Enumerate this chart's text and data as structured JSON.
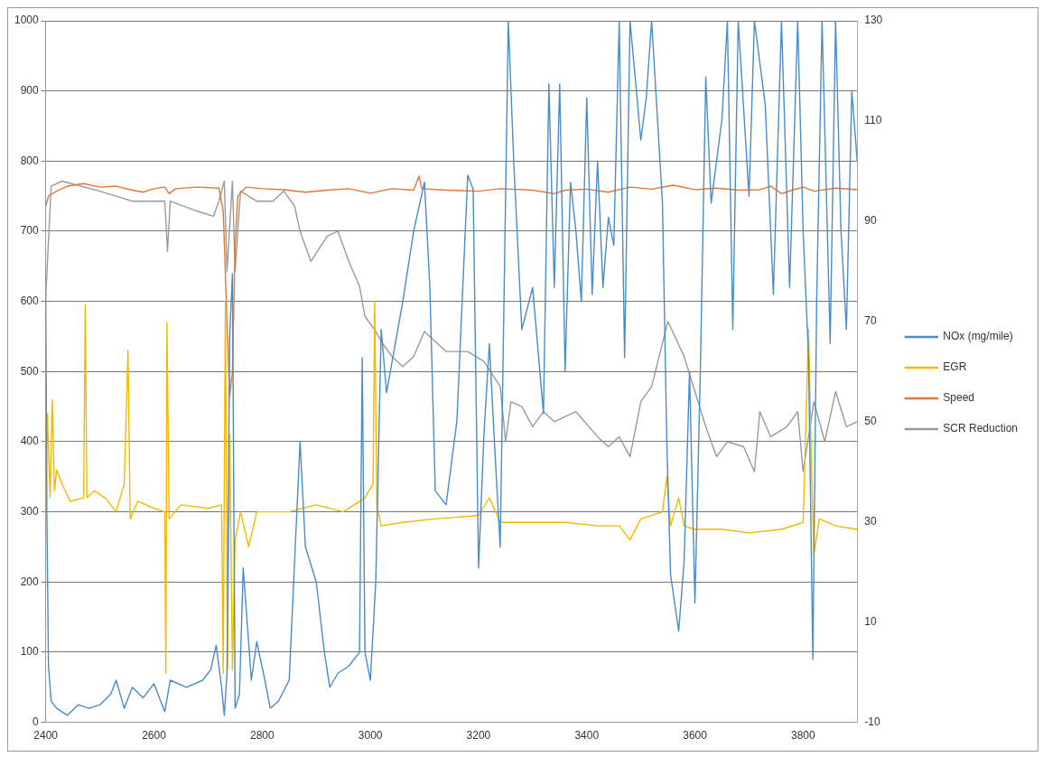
{
  "chart_data": {
    "type": "line",
    "xlim": [
      2400,
      3900
    ],
    "xticks": [
      2400,
      2600,
      2800,
      3000,
      3200,
      3400,
      3600,
      3800
    ],
    "ylim": [
      0,
      1000
    ],
    "yticks": [
      0,
      100,
      200,
      300,
      400,
      500,
      600,
      700,
      800,
      900,
      1000
    ],
    "y2lim": [
      -10,
      130
    ],
    "y2ticks": [
      -10,
      10,
      30,
      50,
      70,
      90,
      110,
      130
    ],
    "grid": "y",
    "legend": "right",
    "marker": "none",
    "series": [
      {
        "name": "NOx (mg/mile)",
        "color": "#4a8bc9",
        "x": [
          2400,
          2402,
          2405,
          2410,
          2420,
          2440,
          2460,
          2480,
          2500,
          2520,
          2530,
          2545,
          2560,
          2580,
          2600,
          2620,
          2630,
          2660,
          2690,
          2705,
          2715,
          2725,
          2730,
          2735,
          2740,
          2745,
          2750,
          2758,
          2765,
          2780,
          2790,
          2805,
          2815,
          2830,
          2850,
          2860,
          2870,
          2880,
          2900,
          2915,
          2925,
          2940,
          2960,
          2980,
          2985,
          2990,
          3000,
          3010,
          3020,
          3030,
          3060,
          3080,
          3100,
          3110,
          3120,
          3140,
          3160,
          3180,
          3190,
          3200,
          3210,
          3220,
          3230,
          3240,
          3255,
          3265,
          3280,
          3300,
          3320,
          3330,
          3340,
          3350,
          3360,
          3370,
          3380,
          3390,
          3400,
          3410,
          3420,
          3430,
          3440,
          3450,
          3460,
          3470,
          3480,
          3500,
          3510,
          3520,
          3540,
          3548,
          3555,
          3570,
          3580,
          3590,
          3600,
          3610,
          3620,
          3630,
          3650,
          3660,
          3670,
          3680,
          3700,
          3710,
          3730,
          3745,
          3760,
          3775,
          3790,
          3800,
          3810,
          3818,
          3825,
          3835,
          3850,
          3860,
          3870,
          3880,
          3890,
          3900
        ],
        "values": [
          610,
          300,
          80,
          30,
          20,
          10,
          25,
          20,
          25,
          40,
          60,
          20,
          50,
          35,
          55,
          15,
          60,
          50,
          60,
          75,
          110,
          50,
          10,
          70,
          550,
          640,
          20,
          40,
          220,
          60,
          115,
          60,
          20,
          30,
          60,
          230,
          400,
          250,
          200,
          100,
          50,
          70,
          80,
          100,
          520,
          100,
          60,
          200,
          560,
          470,
          600,
          700,
          770,
          620,
          330,
          310,
          430,
          780,
          760,
          220,
          410,
          540,
          390,
          250,
          1000,
          800,
          560,
          620,
          440,
          910,
          620,
          910,
          500,
          770,
          700,
          600,
          890,
          610,
          800,
          620,
          720,
          680,
          1000,
          520,
          1000,
          830,
          890,
          1000,
          740,
          400,
          210,
          130,
          230,
          500,
          170,
          500,
          920,
          740,
          860,
          1000,
          560,
          1000,
          750,
          1000,
          880,
          610,
          1000,
          620,
          1000,
          700,
          520,
          90,
          600,
          1000,
          540,
          1000,
          700,
          560,
          900,
          800
        ]
      },
      {
        "name": "EGR",
        "color": "#f5b800",
        "axis": "y",
        "x": [
          2400,
          2403,
          2408,
          2412,
          2416,
          2420,
          2430,
          2445,
          2470,
          2473,
          2476,
          2490,
          2510,
          2530,
          2545,
          2552,
          2556,
          2570,
          2600,
          2620,
          2622,
          2624,
          2628,
          2650,
          2700,
          2725,
          2728,
          2732,
          2736,
          2740,
          2745,
          2750,
          2760,
          2775,
          2790,
          2850,
          2900,
          2950,
          2990,
          3005,
          3008,
          3012,
          3020,
          3060,
          3120,
          3200,
          3220,
          3240,
          3300,
          3360,
          3420,
          3460,
          3480,
          3500,
          3540,
          3548,
          3555,
          3570,
          3580,
          3600,
          3650,
          3700,
          3760,
          3800,
          3810,
          3815,
          3820,
          3830,
          3860,
          3900
        ],
        "values": [
          310,
          440,
          320,
          460,
          330,
          360,
          340,
          315,
          320,
          595,
          320,
          330,
          320,
          300,
          340,
          530,
          290,
          315,
          305,
          300,
          70,
          570,
          290,
          310,
          305,
          310,
          70,
          600,
          75,
          410,
          75,
          260,
          300,
          250,
          300,
          300,
          310,
          300,
          320,
          340,
          600,
          310,
          280,
          285,
          290,
          295,
          320,
          285,
          285,
          285,
          280,
          280,
          260,
          290,
          300,
          350,
          280,
          320,
          280,
          275,
          275,
          270,
          275,
          285,
          560,
          380,
          240,
          290,
          280,
          275
        ]
      },
      {
        "name": "Speed",
        "color": "#e0773a",
        "axis": "y2",
        "x": [
          2400,
          2405,
          2420,
          2440,
          2470,
          2500,
          2530,
          2560,
          2580,
          2600,
          2620,
          2628,
          2640,
          2680,
          2720,
          2728,
          2735,
          2740,
          2745,
          2750,
          2755,
          2770,
          2800,
          2840,
          2880,
          2920,
          2960,
          3000,
          3040,
          3080,
          3090,
          3095,
          3140,
          3200,
          3240,
          3300,
          3340,
          3360,
          3400,
          3440,
          3480,
          3520,
          3560,
          3600,
          3640,
          3680,
          3720,
          3740,
          3760,
          3780,
          3800,
          3820,
          3860,
          3900
        ],
        "values": [
          93,
          95,
          96,
          97,
          97.5,
          96.8,
          97,
          96.2,
          95.8,
          96.5,
          96.8,
          95.5,
          96.5,
          96.8,
          96.6,
          92,
          70,
          55,
          60,
          85,
          95,
          96.8,
          96.5,
          96.3,
          95.8,
          96.2,
          96.5,
          95.6,
          96.5,
          96.2,
          99,
          96.5,
          96.2,
          96,
          96.5,
          96.2,
          95.5,
          96.2,
          96.4,
          95.8,
          96.8,
          96.4,
          97.2,
          96.3,
          96.6,
          96.2,
          96.3,
          97,
          95.5,
          96.2,
          96.8,
          96,
          96.6,
          96.3
        ]
      },
      {
        "name": "SCR Reduction",
        "color": "#9a9a9a",
        "axis": "y2",
        "x": [
          2400,
          2410,
          2430,
          2500,
          2560,
          2600,
          2620,
          2625,
          2630,
          2680,
          2710,
          2720,
          2730,
          2735,
          2745,
          2750,
          2760,
          2790,
          2820,
          2840,
          2860,
          2870,
          2890,
          2920,
          2940,
          2960,
          2980,
          2990,
          3010,
          3020,
          3040,
          3060,
          3080,
          3100,
          3140,
          3180,
          3210,
          3240,
          3250,
          3260,
          3280,
          3300,
          3320,
          3340,
          3380,
          3420,
          3440,
          3460,
          3480,
          3500,
          3520,
          3550,
          3580,
          3600,
          3620,
          3640,
          3660,
          3690,
          3710,
          3720,
          3740,
          3770,
          3790,
          3800,
          3820,
          3840,
          3860,
          3880,
          3900
        ],
        "values": [
          75,
          97,
          98,
          96,
          94,
          94,
          94,
          84,
          94,
          92,
          91,
          94,
          98,
          80,
          98,
          80,
          96,
          94,
          94,
          96,
          93,
          88,
          82,
          87,
          88,
          82,
          77,
          71,
          68,
          66,
          63,
          61,
          63,
          68,
          64,
          64,
          62,
          57,
          46,
          54,
          53,
          49,
          52,
          50,
          52,
          47,
          45,
          47,
          43,
          54,
          57,
          70,
          63,
          56,
          49,
          43,
          46,
          45,
          40,
          52,
          47,
          49,
          52,
          40,
          54,
          46,
          56,
          49,
          50
        ]
      }
    ]
  }
}
